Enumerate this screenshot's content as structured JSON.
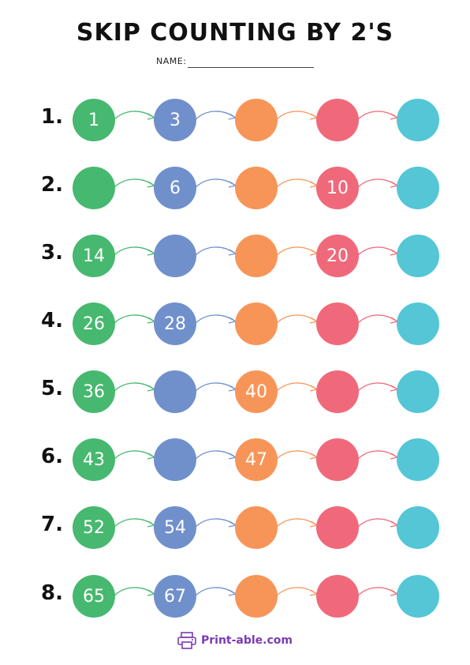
{
  "title": "SKIP COUNTING BY 2'S",
  "name_label": "NAME:",
  "colors": [
    "#47b86f",
    "#7090cc",
    "#f79559",
    "#f0697a",
    "#54c6d6"
  ],
  "rows": [
    {
      "label": "1.",
      "cells": [
        "1",
        "3",
        "",
        "",
        ""
      ]
    },
    {
      "label": "2.",
      "cells": [
        "",
        "6",
        "",
        "10",
        ""
      ]
    },
    {
      "label": "3.",
      "cells": [
        "14",
        "",
        "",
        "20",
        ""
      ]
    },
    {
      "label": "4.",
      "cells": [
        "26",
        "28",
        "",
        "",
        ""
      ]
    },
    {
      "label": "5.",
      "cells": [
        "36",
        "",
        "40",
        "",
        ""
      ]
    },
    {
      "label": "6.",
      "cells": [
        "43",
        "",
        "47",
        "",
        ""
      ]
    },
    {
      "label": "7.",
      "cells": [
        "52",
        "54",
        "",
        "",
        ""
      ]
    },
    {
      "label": "8.",
      "cells": [
        "65",
        "67",
        "",
        "",
        ""
      ]
    }
  ],
  "footer": {
    "text": "Print-able.com",
    "icon": "printer-icon"
  }
}
